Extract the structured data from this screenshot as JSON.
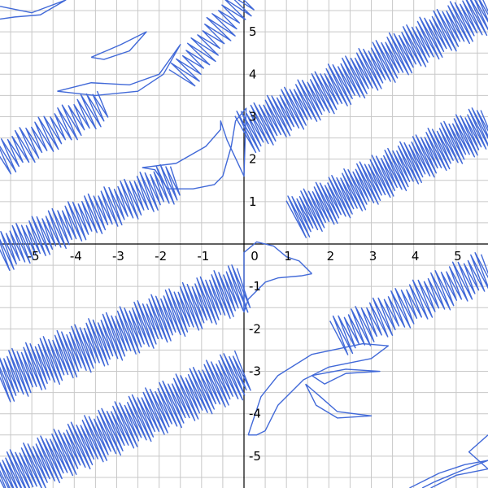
{
  "chart_data": {
    "type": "line",
    "title": "",
    "xlabel": "",
    "ylabel": "",
    "xlim": [
      -5.75,
      5.75
    ],
    "ylim": [
      -5.75,
      5.75
    ],
    "grid": true,
    "grid_step": 0.5,
    "x_ticks": [
      {
        "value": -5,
        "label": "-5"
      },
      {
        "value": -4,
        "label": "-4"
      },
      {
        "value": -3,
        "label": "-3"
      },
      {
        "value": -2,
        "label": "-2"
      },
      {
        "value": -1,
        "label": "-1"
      },
      {
        "value": 0,
        "label": "0"
      },
      {
        "value": 1,
        "label": "1"
      },
      {
        "value": 2,
        "label": "2"
      },
      {
        "value": 3,
        "label": "3"
      },
      {
        "value": 4,
        "label": "4"
      },
      {
        "value": 5,
        "label": "5"
      }
    ],
    "y_ticks": [
      {
        "value": 5,
        "label": "5"
      },
      {
        "value": 4,
        "label": "4"
      },
      {
        "value": 3,
        "label": "3"
      },
      {
        "value": 2,
        "label": "2"
      },
      {
        "value": 1,
        "label": "1"
      },
      {
        "value": -1,
        "label": "-1"
      },
      {
        "value": -2,
        "label": "-2"
      },
      {
        "value": -3,
        "label": "-3"
      },
      {
        "value": -4,
        "label": "-4"
      },
      {
        "value": -5,
        "label": "-5"
      }
    ],
    "series_color": "#4169d8",
    "series": [
      {
        "kind": "zigzag-band",
        "description": "upper-right oscillating band",
        "start": [
          0.0,
          2.6
        ],
        "end": [
          5.75,
          5.55
        ],
        "amplitude": 0.55,
        "cycles": 72
      },
      {
        "kind": "zigzag-band",
        "description": "middle-right oscillating band",
        "start": [
          1.2,
          0.6
        ],
        "end": [
          5.75,
          2.8
        ],
        "amplitude": 0.55,
        "cycles": 62
      },
      {
        "kind": "zigzag-band",
        "description": "lower-left oscillating band",
        "start": [
          -5.75,
          -3.2
        ],
        "end": [
          0.0,
          -1.0
        ],
        "amplitude": 0.6,
        "cycles": 70
      },
      {
        "kind": "zigzag-band",
        "description": "bottom-left oscillating band",
        "start": [
          -5.75,
          -5.6
        ],
        "end": [
          0.0,
          -3.0
        ],
        "amplitude": 0.6,
        "cycles": 72
      },
      {
        "kind": "zigzag-band",
        "description": "middle-left oscillating band",
        "start": [
          -5.75,
          -0.2
        ],
        "end": [
          -1.6,
          1.5
        ],
        "amplitude": 0.5,
        "cycles": 44
      },
      {
        "kind": "zigzag-band",
        "description": "upper-left oscillating band",
        "start": [
          -5.75,
          2.0
        ],
        "end": [
          -3.3,
          3.3
        ],
        "amplitude": 0.45,
        "cycles": 22
      },
      {
        "kind": "zigzag-band",
        "description": "lower-right oscillating band",
        "start": [
          2.2,
          -2.2
        ],
        "end": [
          5.75,
          -0.6
        ],
        "amplitude": 0.5,
        "cycles": 34
      },
      {
        "kind": "zigzag-band",
        "description": "top centre oscillating band",
        "start": [
          -1.5,
          3.9
        ],
        "end": [
          0.0,
          5.8
        ],
        "amplitude": 0.4,
        "cycles": 16
      },
      {
        "kind": "polyline",
        "description": "central upper cusp shape",
        "points": [
          [
            -2.4,
            1.8
          ],
          [
            -1.6,
            1.9
          ],
          [
            -0.9,
            2.3
          ],
          [
            -0.55,
            2.7
          ],
          [
            -0.55,
            2.9
          ],
          [
            -0.4,
            2.45
          ],
          [
            0.0,
            1.6
          ],
          [
            0.05,
            3.2
          ],
          [
            -0.2,
            2.9
          ],
          [
            -0.3,
            2.3
          ],
          [
            -0.5,
            1.6
          ],
          [
            -0.7,
            1.4
          ],
          [
            -1.2,
            1.3
          ],
          [
            -1.8,
            1.3
          ],
          [
            -2.1,
            1.75
          ],
          [
            -2.4,
            1.8
          ]
        ]
      },
      {
        "kind": "polyline",
        "description": "central lower cusp shape",
        "points": [
          [
            1.6,
            -0.7
          ],
          [
            1.35,
            -0.75
          ],
          [
            0.8,
            -0.8
          ],
          [
            0.5,
            -0.9
          ],
          [
            0.1,
            -1.3
          ],
          [
            0.0,
            -1.6
          ],
          [
            0.0,
            -0.2
          ],
          [
            0.3,
            0.05
          ],
          [
            0.7,
            -0.05
          ],
          [
            1.0,
            -0.3
          ],
          [
            1.3,
            -0.4
          ],
          [
            1.6,
            -0.7
          ]
        ]
      },
      {
        "kind": "polyline",
        "description": "lower centre cusp shape",
        "points": [
          [
            0.1,
            -4.5
          ],
          [
            0.4,
            -3.6
          ],
          [
            0.8,
            -3.1
          ],
          [
            1.6,
            -2.6
          ],
          [
            2.8,
            -2.35
          ],
          [
            3.4,
            -2.4
          ],
          [
            3.0,
            -2.7
          ],
          [
            2.0,
            -2.9
          ],
          [
            1.4,
            -3.2
          ],
          [
            0.8,
            -3.8
          ],
          [
            0.5,
            -4.4
          ],
          [
            0.3,
            -4.5
          ],
          [
            0.1,
            -4.5
          ]
        ]
      },
      {
        "kind": "polyline",
        "description": "lower right crescent",
        "points": [
          [
            1.6,
            -3.1
          ],
          [
            2.4,
            -2.95
          ],
          [
            3.2,
            -3.0
          ],
          [
            2.4,
            -3.05
          ],
          [
            1.9,
            -3.3
          ],
          [
            1.6,
            -3.1
          ]
        ]
      },
      {
        "kind": "polyline",
        "description": "lower right crescent inner",
        "points": [
          [
            1.45,
            -3.3
          ],
          [
            1.7,
            -3.8
          ],
          [
            2.2,
            -4.1
          ],
          [
            3.0,
            -4.05
          ],
          [
            2.2,
            -3.95
          ],
          [
            1.8,
            -3.6
          ],
          [
            1.45,
            -3.3
          ]
        ]
      },
      {
        "kind": "polyline",
        "description": "upper left crescent",
        "points": [
          [
            -3.6,
            4.4
          ],
          [
            -2.9,
            4.7
          ],
          [
            -2.3,
            5.0
          ],
          [
            -2.7,
            4.55
          ],
          [
            -3.3,
            4.35
          ],
          [
            -3.6,
            4.4
          ]
        ]
      },
      {
        "kind": "polyline",
        "description": "upper left crescent outer",
        "points": [
          [
            -4.4,
            3.6
          ],
          [
            -3.6,
            3.8
          ],
          [
            -2.7,
            3.75
          ],
          [
            -2.0,
            4.0
          ],
          [
            -1.5,
            4.7
          ],
          [
            -1.9,
            4.0
          ],
          [
            -2.5,
            3.6
          ],
          [
            -3.5,
            3.5
          ],
          [
            -4.4,
            3.6
          ]
        ]
      },
      {
        "kind": "polyline",
        "description": "top left corner arcs",
        "points": [
          [
            -5.75,
            5.6
          ],
          [
            -5.0,
            5.45
          ],
          [
            -4.2,
            5.75
          ],
          [
            -4.8,
            5.4
          ],
          [
            -5.4,
            5.35
          ],
          [
            -5.75,
            5.3
          ]
        ]
      },
      {
        "kind": "polyline",
        "description": "bottom right corner arcs",
        "points": [
          [
            3.9,
            -5.75
          ],
          [
            4.6,
            -5.4
          ],
          [
            5.2,
            -5.2
          ],
          [
            5.75,
            -5.1
          ],
          [
            5.1,
            -5.35
          ],
          [
            4.5,
            -5.6
          ],
          [
            4.2,
            -5.75
          ]
        ]
      },
      {
        "kind": "polyline",
        "description": "bottom right corner arcs 2",
        "points": [
          [
            4.4,
            -5.75
          ],
          [
            5.0,
            -5.45
          ],
          [
            5.75,
            -5.3
          ],
          [
            5.3,
            -4.9
          ],
          [
            5.75,
            -4.5
          ]
        ]
      }
    ]
  }
}
